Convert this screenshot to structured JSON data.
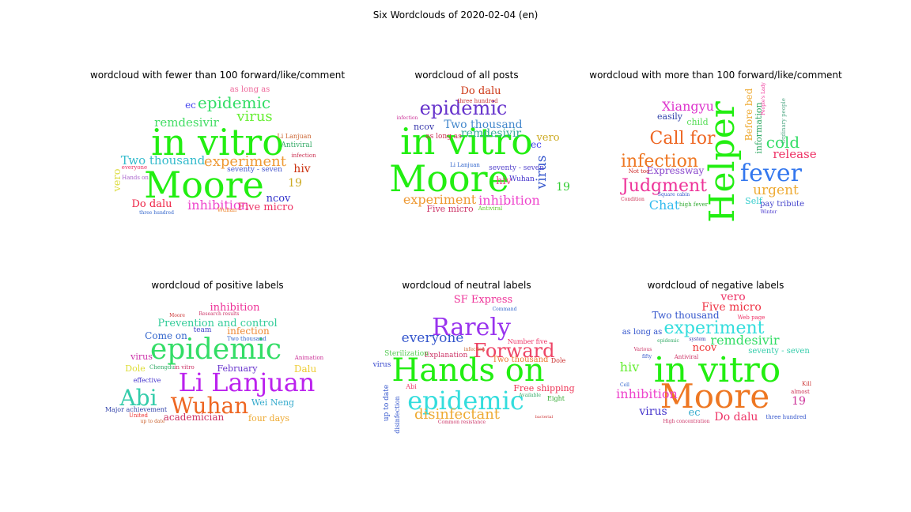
{
  "suptitle": "Six Wordclouds of 2020-02-04 (en)",
  "panels": [
    {
      "title": "wordcloud with fewer than 100 forward/like/comment",
      "words": [
        {
          "t": "in vitro",
          "s": 46,
          "c": "#22ee11"
        },
        {
          "t": "Moore",
          "s": 46,
          "c": "#22ee11"
        },
        {
          "t": "epidemic",
          "s": 20,
          "c": "#33dd66"
        },
        {
          "t": "virus",
          "s": 18,
          "c": "#66ee33"
        },
        {
          "t": "experiment",
          "s": 18,
          "c": "#ee9933"
        },
        {
          "t": "Two thousand",
          "s": 15,
          "c": "#33bbcc"
        },
        {
          "t": "remdesivir",
          "s": 15,
          "c": "#44dd66"
        },
        {
          "t": "inhibition",
          "s": 16,
          "c": "#ee44cc"
        },
        {
          "t": "Five micro",
          "s": 13,
          "c": "#ee3366"
        },
        {
          "t": "Do dalu",
          "s": 13,
          "c": "#ee2244"
        },
        {
          "t": "hiv",
          "s": 14,
          "c": "#cc3311"
        },
        {
          "t": "ncov",
          "s": 13,
          "c": "#3333cc"
        },
        {
          "t": "19",
          "s": 14,
          "c": "#ccaa22"
        },
        {
          "t": "ec",
          "s": 12,
          "c": "#4444ee"
        },
        {
          "t": "as long as",
          "s": 10,
          "c": "#ee6699"
        },
        {
          "t": "seventy - seven",
          "s": 9,
          "c": "#4455cc"
        },
        {
          "t": "vero",
          "s": 13,
          "c": "#dddd44"
        },
        {
          "t": "Antiviral",
          "s": 9,
          "c": "#33aa66"
        },
        {
          "t": "Li Lanjuan",
          "s": 8,
          "c": "#cc6633"
        },
        {
          "t": "three hundred",
          "s": 6,
          "c": "#3366cc"
        },
        {
          "t": "infection",
          "s": 7,
          "c": "#cc3355"
        },
        {
          "t": "everyone",
          "s": 7,
          "c": "#ee3366"
        },
        {
          "t": "Hands on",
          "s": 7,
          "c": "#aa66cc"
        },
        {
          "t": "Wuhan",
          "s": 7,
          "c": "#ee8833"
        }
      ]
    },
    {
      "title": "wordcloud of all posts",
      "words": [
        {
          "t": "in vitro",
          "s": 46,
          "c": "#22ee11"
        },
        {
          "t": "Moore",
          "s": 46,
          "c": "#22ee11"
        },
        {
          "t": "epidemic",
          "s": 24,
          "c": "#6633cc"
        },
        {
          "t": "Two thousand",
          "s": 14,
          "c": "#4488cc"
        },
        {
          "t": "remdesivir",
          "s": 14,
          "c": "#33aa99"
        },
        {
          "t": "experiment",
          "s": 16,
          "c": "#ee9933"
        },
        {
          "t": "inhibition",
          "s": 16,
          "c": "#ee44cc"
        },
        {
          "t": "virus",
          "s": 17,
          "c": "#3355cc"
        },
        {
          "t": "Do dalu",
          "s": 13,
          "c": "#cc3311"
        },
        {
          "t": "Five micro",
          "s": 11,
          "c": "#cc3366"
        },
        {
          "t": "hiv",
          "s": 13,
          "c": "#ee4488"
        },
        {
          "t": "ncov",
          "s": 11,
          "c": "#3333aa"
        },
        {
          "t": "vero",
          "s": 13,
          "c": "#ccaa22"
        },
        {
          "t": "ec",
          "s": 12,
          "c": "#4444ee"
        },
        {
          "t": "19",
          "s": 14,
          "c": "#33cc33"
        },
        {
          "t": "as long as",
          "s": 9,
          "c": "#cc3355"
        },
        {
          "t": "seventy - seven",
          "s": 9,
          "c": "#5544cc"
        },
        {
          "t": "Wuhan",
          "s": 9,
          "c": "#4433cc"
        },
        {
          "t": "three hundred",
          "s": 7,
          "c": "#cc3333"
        },
        {
          "t": "Li Lanjuan",
          "s": 7,
          "c": "#3366cc"
        },
        {
          "t": "infection",
          "s": 6,
          "c": "#cc3399"
        },
        {
          "t": "Antiviral",
          "s": 7,
          "c": "#66cc33"
        }
      ]
    },
    {
      "title": "wordcloud with more than 100 forward/like/comment",
      "words": [
        {
          "t": "Helper",
          "s": 44,
          "c": "#22ee11"
        },
        {
          "t": "fever",
          "s": 30,
          "c": "#3377ee"
        },
        {
          "t": "Judgment",
          "s": 22,
          "c": "#ee3399"
        },
        {
          "t": "infection",
          "s": 22,
          "c": "#ee7722"
        },
        {
          "t": "Call for",
          "s": 22,
          "c": "#ee6622"
        },
        {
          "t": "Xiangyu",
          "s": 16,
          "c": "#dd33cc"
        },
        {
          "t": "cold",
          "s": 20,
          "c": "#33dd66"
        },
        {
          "t": "release",
          "s": 15,
          "c": "#ee3366"
        },
        {
          "t": "urgent",
          "s": 17,
          "c": "#eeaa33"
        },
        {
          "t": "Chat",
          "s": 16,
          "c": "#33bbee"
        },
        {
          "t": "Expressway",
          "s": 12,
          "c": "#8844cc"
        },
        {
          "t": "easily",
          "s": 11,
          "c": "#3344aa"
        },
        {
          "t": "child",
          "s": 11,
          "c": "#55dd55"
        },
        {
          "t": "Before bed",
          "s": 12,
          "c": "#eeaa33"
        },
        {
          "t": "information",
          "s": 11,
          "c": "#33aa66"
        },
        {
          "t": "pay tribute",
          "s": 10,
          "c": "#4444cc"
        },
        {
          "t": "Self",
          "s": 11,
          "c": "#33cccc"
        },
        {
          "t": "Ordinary people",
          "s": 7,
          "c": "#55aa88"
        },
        {
          "t": "Not too",
          "s": 7,
          "c": "#cc2222"
        },
        {
          "t": "Square cabin",
          "s": 6,
          "c": "#3355cc"
        },
        {
          "t": "high fever",
          "s": 7,
          "c": "#33aa33"
        },
        {
          "t": "Condition",
          "s": 6,
          "c": "#cc3355"
        },
        {
          "t": "Winter",
          "s": 6,
          "c": "#4433cc"
        },
        {
          "t": "People's Lady",
          "s": 6,
          "c": "#ee3399"
        }
      ]
    },
    {
      "title": "wordcloud of positive labels",
      "words": [
        {
          "t": "epidemic",
          "s": 36,
          "c": "#33dd66"
        },
        {
          "t": "Li Lanjuan",
          "s": 32,
          "c": "#bb22ee"
        },
        {
          "t": "Wuhan",
          "s": 28,
          "c": "#ee6622"
        },
        {
          "t": "Abi",
          "s": 28,
          "c": "#33ccaa"
        },
        {
          "t": "Prevention and control",
          "s": 13,
          "c": "#33cc99"
        },
        {
          "t": "inhibition",
          "s": 13,
          "c": "#ee3399"
        },
        {
          "t": "infection",
          "s": 12,
          "c": "#ee8833"
        },
        {
          "t": "Come on",
          "s": 12,
          "c": "#3366cc"
        },
        {
          "t": "academician",
          "s": 12,
          "c": "#cc3366"
        },
        {
          "t": "four days",
          "s": 11,
          "c": "#eeaa33"
        },
        {
          "t": "Wei Neng",
          "s": 11,
          "c": "#33aacc"
        },
        {
          "t": "February",
          "s": 11,
          "c": "#6633cc"
        },
        {
          "t": "virus",
          "s": 11,
          "c": "#cc33aa"
        },
        {
          "t": "Dalu",
          "s": 12,
          "c": "#eecc33"
        },
        {
          "t": "Dole",
          "s": 11,
          "c": "#dddd33"
        },
        {
          "t": "effective",
          "s": 8,
          "c": "#4433cc"
        },
        {
          "t": "Major achievement",
          "s": 8,
          "c": "#3344aa"
        },
        {
          "t": "team",
          "s": 9,
          "c": "#4444cc"
        },
        {
          "t": "Two thousand",
          "s": 7,
          "c": "#3366cc"
        },
        {
          "t": "Research results",
          "s": 6,
          "c": "#cc3366"
        },
        {
          "t": "in vitro",
          "s": 7,
          "c": "#cc3366"
        },
        {
          "t": "Chengdu",
          "s": 7,
          "c": "#33aa66"
        },
        {
          "t": "Animation",
          "s": 7,
          "c": "#cc3399"
        },
        {
          "t": "United",
          "s": 7,
          "c": "#ee3333"
        },
        {
          "t": "up to date",
          "s": 6,
          "c": "#cc6633"
        },
        {
          "t": "Moore",
          "s": 6,
          "c": "#cc3333"
        },
        {
          "t": "Antiviral",
          "s": 6,
          "c": "#ee3366"
        }
      ]
    },
    {
      "title": "wordcloud of neutral labels",
      "words": [
        {
          "t": "Hands on",
          "s": 40,
          "c": "#22ee11"
        },
        {
          "t": "epidemic",
          "s": 32,
          "c": "#33dddd"
        },
        {
          "t": "Rarely",
          "s": 30,
          "c": "#9933ee"
        },
        {
          "t": "Forward",
          "s": 24,
          "c": "#ee4466"
        },
        {
          "t": "disinfectant",
          "s": 18,
          "c": "#eeaa33"
        },
        {
          "t": "everyone",
          "s": 17,
          "c": "#3355cc"
        },
        {
          "t": "SF Express",
          "s": 13,
          "c": "#ee3399"
        },
        {
          "t": "Free shipping",
          "s": 11,
          "c": "#ee3355"
        },
        {
          "t": "Two thousand",
          "s": 10,
          "c": "#ee7733"
        },
        {
          "t": "Explanation",
          "s": 9,
          "c": "#cc3366"
        },
        {
          "t": "Sterilization",
          "s": 9,
          "c": "#55cc55"
        },
        {
          "t": "virus",
          "s": 9,
          "c": "#3344cc"
        },
        {
          "t": "up to date",
          "s": 9,
          "c": "#3355cc"
        },
        {
          "t": "disinfection",
          "s": 8,
          "c": "#3355cc"
        },
        {
          "t": "Number five",
          "s": 8,
          "c": "#ee3366"
        },
        {
          "t": "Dole",
          "s": 8,
          "c": "#cc3333"
        },
        {
          "t": "Eight",
          "s": 8,
          "c": "#33aa33"
        },
        {
          "t": "Abi",
          "s": 8,
          "c": "#ee3366"
        },
        {
          "t": "Common resistance",
          "s": 6,
          "c": "#cc3366"
        },
        {
          "t": "Command",
          "s": 6,
          "c": "#3366cc"
        },
        {
          "t": "Available",
          "s": 6,
          "c": "#33aa66"
        },
        {
          "t": "bacterial",
          "s": 5,
          "c": "#cc3333"
        },
        {
          "t": "infection",
          "s": 6,
          "c": "#cc6633"
        }
      ]
    },
    {
      "title": "wordcloud of negative labels",
      "words": [
        {
          "t": "in vitro",
          "s": 44,
          "c": "#22ee11"
        },
        {
          "t": "Moore",
          "s": 42,
          "c": "#ee7722"
        },
        {
          "t": "experiment",
          "s": 22,
          "c": "#33dddd"
        },
        {
          "t": "remdesivir",
          "s": 16,
          "c": "#33dd66"
        },
        {
          "t": "Five micro",
          "s": 14,
          "c": "#ee3344"
        },
        {
          "t": "vero",
          "s": 14,
          "c": "#ee3366"
        },
        {
          "t": "Two thousand",
          "s": 12,
          "c": "#3355cc"
        },
        {
          "t": "inhibition",
          "s": 16,
          "c": "#ee44cc"
        },
        {
          "t": "hiv",
          "s": 16,
          "c": "#66ee33"
        },
        {
          "t": "ncov",
          "s": 13,
          "c": "#ee3333"
        },
        {
          "t": "virus",
          "s": 14,
          "c": "#4433cc"
        },
        {
          "t": "ec",
          "s": 13,
          "c": "#33aacc"
        },
        {
          "t": "Do dalu",
          "s": 14,
          "c": "#ee3366"
        },
        {
          "t": "19",
          "s": 14,
          "c": "#cc3399"
        },
        {
          "t": "as long as",
          "s": 10,
          "c": "#3355cc"
        },
        {
          "t": "seventy - seven",
          "s": 10,
          "c": "#33ccaa"
        },
        {
          "t": "three hundred",
          "s": 7,
          "c": "#3355cc"
        },
        {
          "t": "Web page",
          "s": 7,
          "c": "#ee3366"
        },
        {
          "t": "Antiviral",
          "s": 7,
          "c": "#cc3366"
        },
        {
          "t": "Kill",
          "s": 7,
          "c": "#cc3333"
        },
        {
          "t": "almost",
          "s": 7,
          "c": "#cc3355"
        },
        {
          "t": "Cell",
          "s": 6,
          "c": "#3366cc"
        },
        {
          "t": "High concentration",
          "s": 6,
          "c": "#cc3366"
        },
        {
          "t": "Various",
          "s": 6,
          "c": "#cc3366"
        },
        {
          "t": "fifty",
          "s": 6,
          "c": "#3355cc"
        },
        {
          "t": "system",
          "s": 6,
          "c": "#3333aa"
        },
        {
          "t": "epidemic",
          "s": 6,
          "c": "#33aa66"
        }
      ]
    }
  ]
}
